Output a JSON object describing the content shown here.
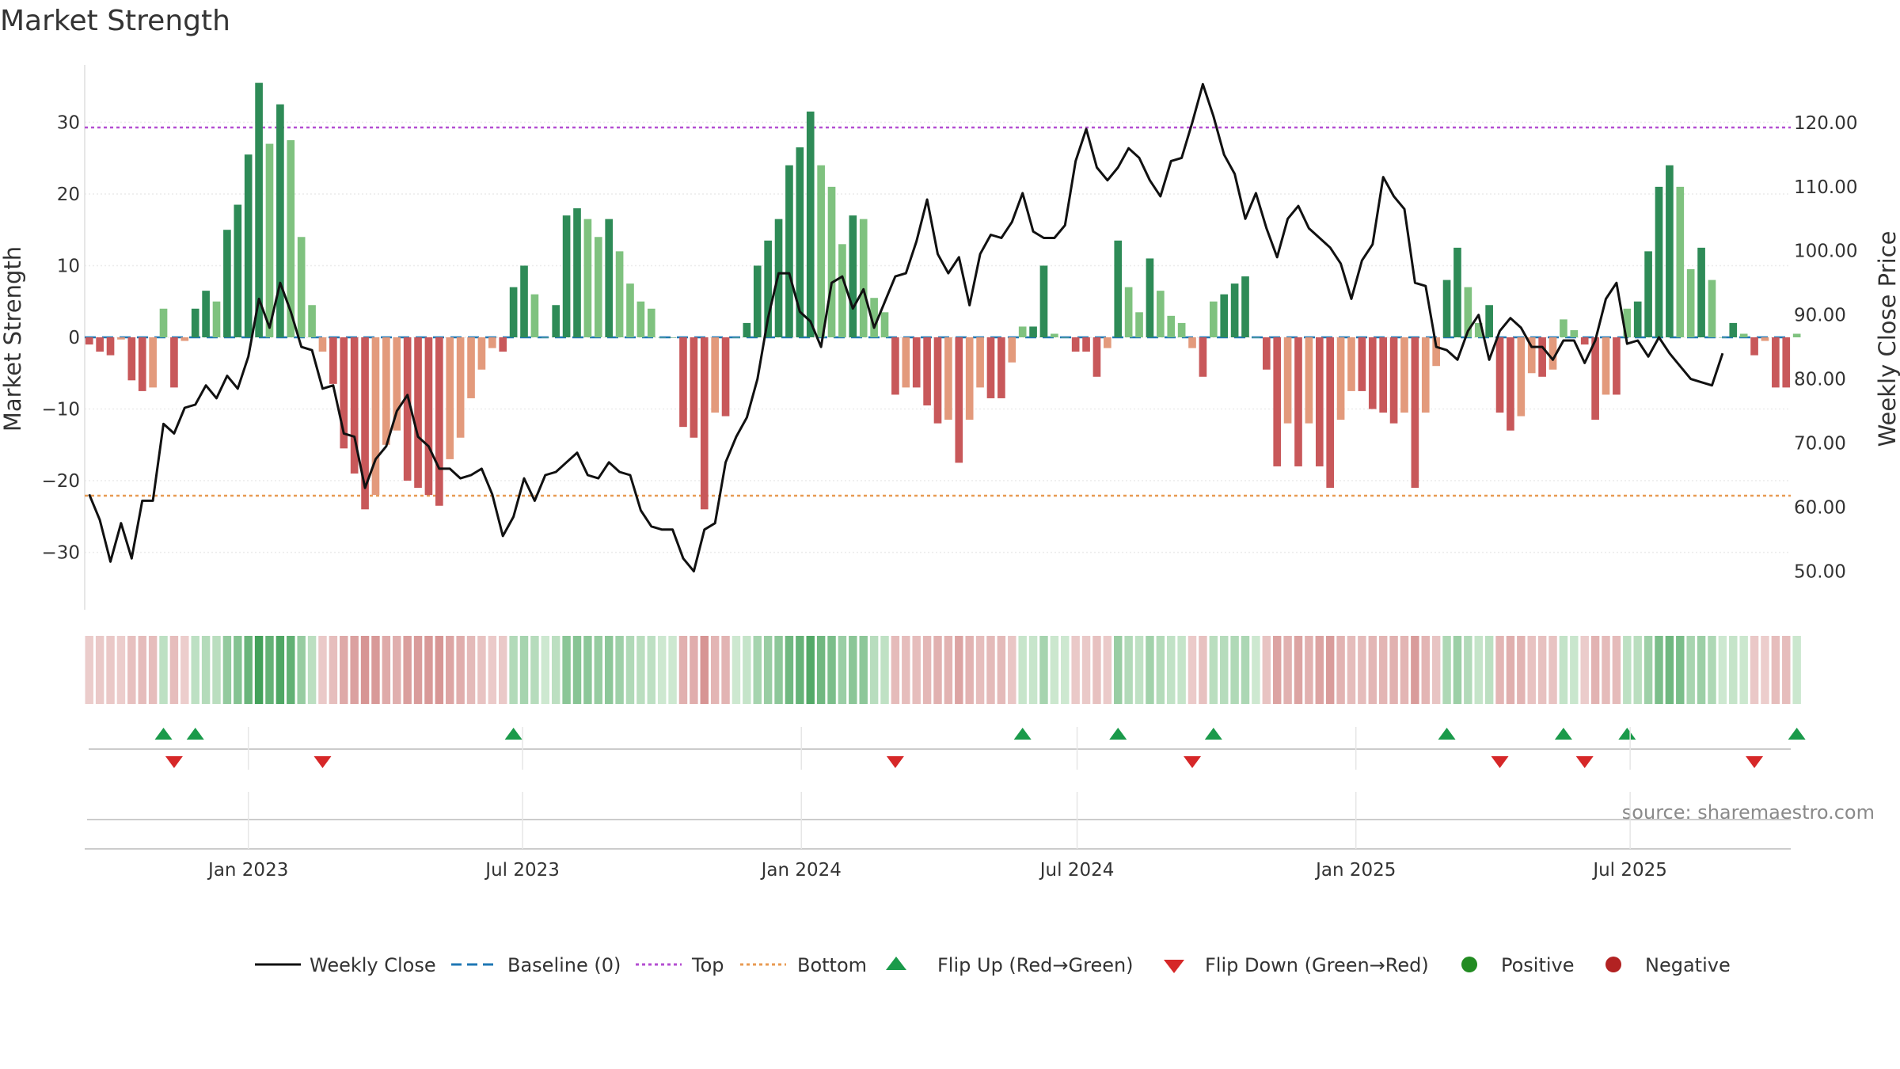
{
  "chart_data": {
    "type": "bar",
    "title": "Market Strength",
    "ylabel": "Market Strength",
    "y2label": "Weekly Close Price",
    "ylim": [
      -38,
      38
    ],
    "y2lim": [
      44,
      129
    ],
    "xlim": [
      "2022-09-15",
      "2025-10-15"
    ],
    "yticks": [
      30,
      20,
      10,
      0,
      -10,
      -20,
      -30
    ],
    "ytick_labels": [
      "30",
      "20",
      "10",
      "0",
      "−10",
      "−20",
      "−30"
    ],
    "y2ticks": [
      120,
      110,
      100,
      90,
      80,
      70,
      60,
      50
    ],
    "y2tick_labels": [
      "120.00",
      "110.00",
      "100.00",
      "90.00",
      "80.00",
      "70.00",
      "60.00",
      "50.00"
    ],
    "x_ticks": [
      {
        "date": "2023-01-01",
        "label": "Jan 2023"
      },
      {
        "date": "2023-07-01",
        "label": "Jul 2023"
      },
      {
        "date": "2024-01-01",
        "label": "Jan 2024"
      },
      {
        "date": "2024-07-01",
        "label": "Jul 2024"
      },
      {
        "date": "2025-01-01",
        "label": "Jan 2025"
      },
      {
        "date": "2025-07-01",
        "label": "Jul 2025"
      }
    ],
    "start_date": "2022-09-18",
    "interval_days": 7,
    "strength": [
      -1,
      -2,
      -2.5,
      -0.3,
      -6,
      -7.5,
      -7,
      4,
      -7,
      -0.5,
      4,
      6.5,
      5,
      15,
      18.5,
      25.5,
      35.5,
      27,
      32.5,
      27.5,
      14,
      4.5,
      -2,
      -6.5,
      -15.5,
      -19,
      -24,
      -22,
      -15,
      -13,
      -20,
      -21,
      -22,
      -23.5,
      -17,
      -14,
      -8.5,
      -4.5,
      -1.5,
      -2,
      7,
      10,
      6,
      0,
      4.5,
      17,
      18,
      16.5,
      14,
      16.5,
      12,
      7.5,
      5,
      4,
      0,
      0,
      -12.5,
      -14,
      -24,
      -10.5,
      -11,
      0,
      2,
      10,
      13.5,
      16.5,
      24,
      26.5,
      31.5,
      24,
      21,
      13,
      17,
      16.5,
      5.5,
      3.5,
      -8,
      -7,
      -7,
      -9.5,
      -12,
      -11.5,
      -17.5,
      -11.5,
      -7,
      -8.5,
      -8.5,
      -3.5,
      1.5,
      1.5,
      10,
      0.5,
      0,
      -2,
      -2,
      -5.5,
      -1.5,
      13.5,
      7,
      3.5,
      11,
      6.5,
      3,
      2,
      -1.5,
      -5.5,
      5,
      6,
      7.5,
      8.5,
      0,
      -4.5,
      -18,
      -12,
      -18,
      -12,
      -18,
      -21,
      -11.5,
      -7.5,
      -7.5,
      -10,
      -10.5,
      -12,
      -10.5,
      -21,
      -10.5,
      -4,
      8,
      12.5,
      7,
      2,
      4.5,
      -10.5,
      -13,
      -11,
      -5,
      -5.5,
      -4.5,
      2.5,
      1,
      -1,
      -11.5,
      -8,
      -8,
      4,
      5,
      12,
      21,
      24,
      21,
      9.5,
      12.5,
      8,
      0,
      2,
      0.5,
      -2.5,
      -0.5,
      -7,
      -7,
      0.5
    ],
    "close": [
      62,
      58,
      51.5,
      57.5,
      52,
      61,
      61,
      73,
      71.5,
      75.5,
      76,
      79,
      77,
      80.5,
      78.5,
      83.5,
      92.5,
      88,
      95,
      90.5,
      85,
      84.5,
      78.5,
      79,
      71.5,
      71,
      63,
      67.5,
      69.5,
      75,
      77.5,
      71,
      69.5,
      66,
      66,
      64.5,
      65,
      66,
      62,
      55.5,
      58.5,
      64.5,
      61,
      65,
      65.5,
      67,
      68.5,
      65,
      64.5,
      67,
      65.5,
      65,
      59.5,
      57,
      56.5,
      56.5,
      52,
      50,
      56.5,
      57.5,
      67,
      71,
      74,
      80,
      89.5,
      96.5,
      96.5,
      90.5,
      89,
      85,
      95,
      96,
      91,
      94,
      88,
      92,
      96,
      96.5,
      101.5,
      108,
      99.5,
      96.5,
      99,
      91.5,
      99.5,
      102.5,
      102,
      104.5,
      109,
      103,
      102,
      102,
      104,
      114,
      119,
      113,
      111,
      113,
      116,
      114.5,
      111,
      108.5,
      114,
      114.5,
      120,
      126,
      121,
      115,
      112,
      105,
      109,
      103.5,
      99,
      105,
      107,
      103.5,
      102,
      100.5,
      98,
      92.5,
      98.5,
      101,
      111.5,
      108.5,
      106.5,
      95,
      94.5,
      85,
      84.5,
      83,
      87.5,
      90,
      83,
      87.5,
      89.5,
      88,
      85,
      85,
      83,
      86,
      86,
      82.5,
      86,
      92.5,
      95,
      85.5,
      86,
      83.5,
      86.5,
      84,
      82,
      80,
      79.5,
      79,
      84
    ]
  },
  "legend": {
    "weekly_close": "Weekly Close",
    "baseline": "Baseline (0)",
    "top": "Top",
    "bottom": "Bottom",
    "flip_up": "Flip Up (Red→Green)",
    "flip_down": "Flip Down (Green→Red)",
    "positive": "Positive",
    "negative": "Negative"
  },
  "source": "source: sharemaestro.com",
  "colors": {
    "strong_green": "#2e8b57",
    "light_green": "#7fc27f",
    "strong_red": "#c8585a",
    "light_red": "#e39a7c",
    "top_line": "#b44fd2",
    "bottom_line": "#e89b53",
    "baseline": "#1f77b4",
    "close_line": "#111111",
    "flip_up": "#1a9a4a",
    "flip_down": "#d62728",
    "positive": "#228b22",
    "negative": "#b22222"
  }
}
